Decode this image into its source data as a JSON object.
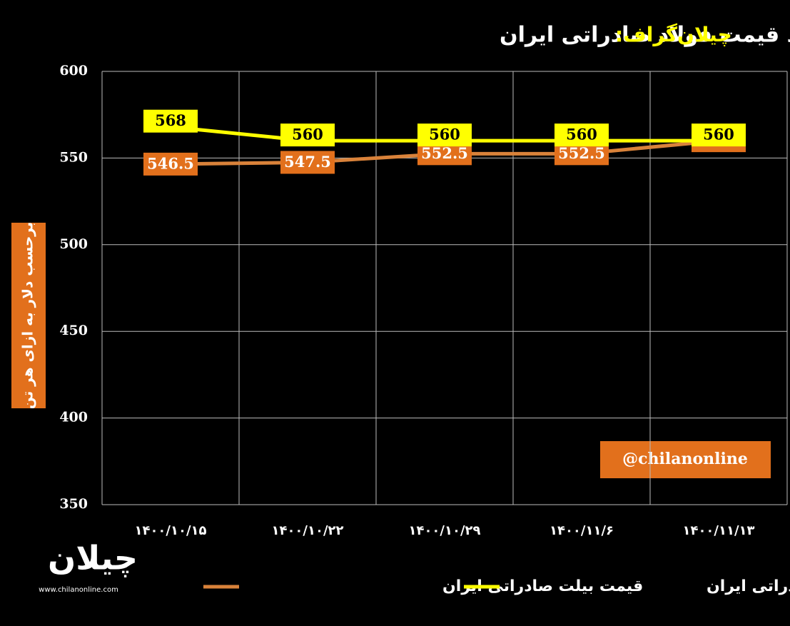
{
  "chart_data": {
    "type": "line",
    "title_prefix": "چیلان‌گراف:",
    "title": "روند قیمت فولاد صادراتی ایران",
    "y_label": "برحسب دلار به ازای هر تن",
    "watermark": "@chilanonline",
    "logo": "چیلان",
    "website": "www.chilanonline.com",
    "categories": [
      "۱۴۰۰/۱۰/۱۵",
      "۱۴۰۰/۱۰/۲۲",
      "۱۴۰۰/۱۰/۲۹",
      "۱۴۰۰/۱۱/۶",
      "۱۴۰۰/۱۱/۱۳"
    ],
    "series": [
      {
        "name": "قیمت بیلت صادراتی ایران",
        "color": "#d9823a",
        "label_color": "#e2701c",
        "values": [
          546.5,
          547.5,
          552.5,
          552.5,
          560
        ]
      },
      {
        "name": "قیمت اسلب صادراتی ایران",
        "color": "#ffff00",
        "label_color": "#ffff00",
        "values": [
          568,
          560,
          560,
          560,
          560
        ]
      }
    ],
    "ylim": [
      350,
      600
    ],
    "yticks": [
      350,
      400,
      450,
      500,
      550,
      600
    ],
    "grid": true
  }
}
